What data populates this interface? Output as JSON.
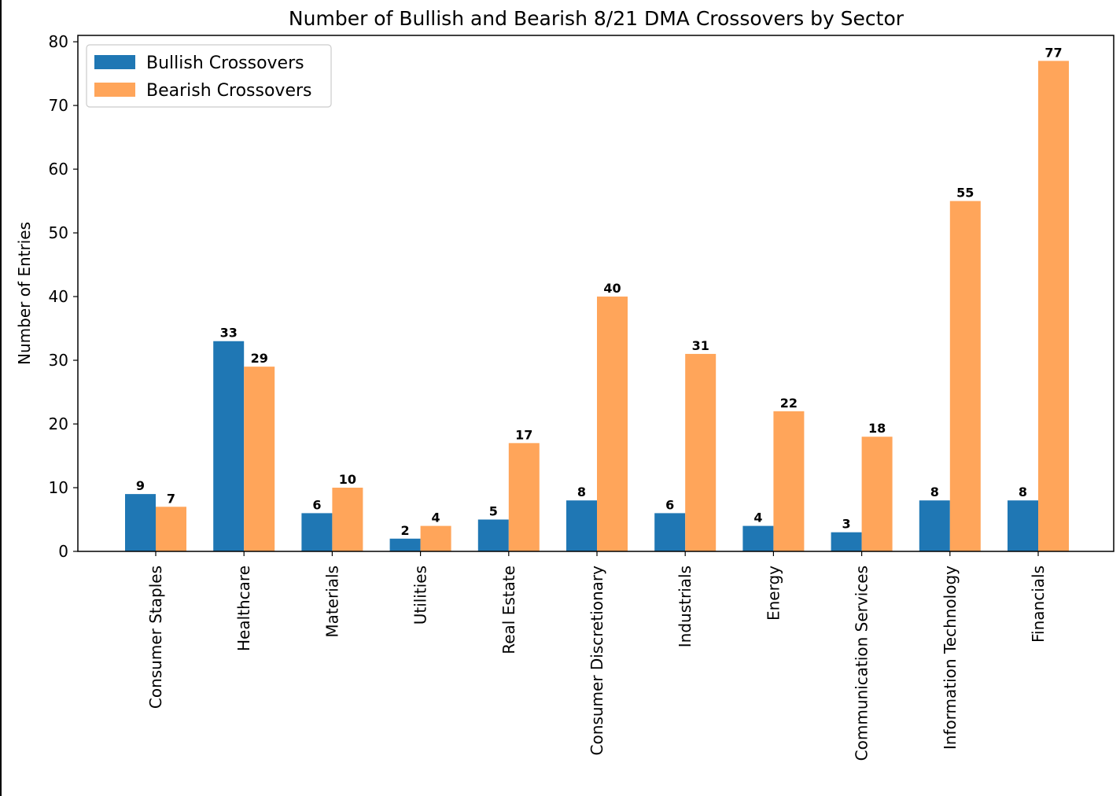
{
  "chart_data": {
    "type": "bar",
    "title": "Number of Bullish and Bearish 8/21 DMA Crossovers by Sector",
    "xlabel": "",
    "ylabel": "Number of Entries",
    "ylim": [
      0,
      81
    ],
    "yticks": [
      0,
      10,
      20,
      30,
      40,
      50,
      60,
      70,
      80
    ],
    "grid": false,
    "legend_position": "top-left",
    "categories": [
      "Consumer Staples",
      "Healthcare",
      "Materials",
      "Utilities",
      "Real Estate",
      "Consumer Discretionary",
      "Industrials",
      "Energy",
      "Communication Services",
      "Information Technology",
      "Financials"
    ],
    "series": [
      {
        "name": "Bullish Crossovers",
        "color": "#1f77b4",
        "values": [
          9,
          33,
          6,
          2,
          5,
          8,
          6,
          4,
          3,
          8,
          8
        ]
      },
      {
        "name": "Bearish Crossovers",
        "color": "#ffa55a",
        "values": [
          7,
          29,
          10,
          4,
          17,
          40,
          31,
          22,
          18,
          55,
          77
        ]
      }
    ]
  }
}
